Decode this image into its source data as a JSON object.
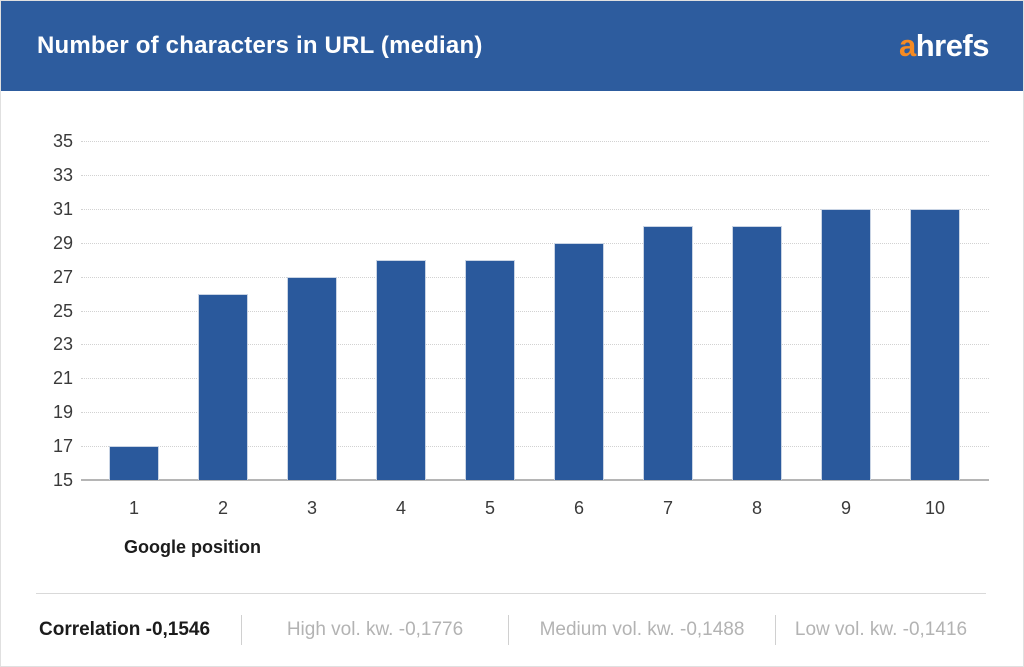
{
  "header": {
    "title": "Number of characters in URL (median)",
    "logo_prefix": "a",
    "logo_rest": "hrefs"
  },
  "colors": {
    "header_bg": "#2d5c9e",
    "bar_fill": "#2a599c",
    "bar_border": "#c9d4e4",
    "logo_orange": "#f78b22",
    "gridline": "#d2d2d2",
    "baseline": "#b5b5b5"
  },
  "chart_data": {
    "type": "bar",
    "title": "Number of characters in URL (median)",
    "categories": [
      "1",
      "2",
      "3",
      "4",
      "5",
      "6",
      "7",
      "8",
      "9",
      "10"
    ],
    "values": [
      17,
      26,
      27,
      28,
      28,
      29,
      30,
      30,
      31,
      31
    ],
    "xlabel": "Google position",
    "ylabel": "",
    "ylim": [
      15,
      35
    ],
    "yticks": [
      15,
      17,
      19,
      21,
      23,
      25,
      27,
      29,
      31,
      33,
      35
    ],
    "grid": "horizontal-dotted",
    "legend": "none",
    "bar_color": "#2a599c"
  },
  "footer": {
    "items": [
      {
        "label": "Correlation -0,1546"
      },
      {
        "label": "High vol. kw. -0,1776"
      },
      {
        "label": "Medium vol. kw. -0,1488"
      },
      {
        "label": "Low vol. kw. -0,1416"
      }
    ]
  }
}
